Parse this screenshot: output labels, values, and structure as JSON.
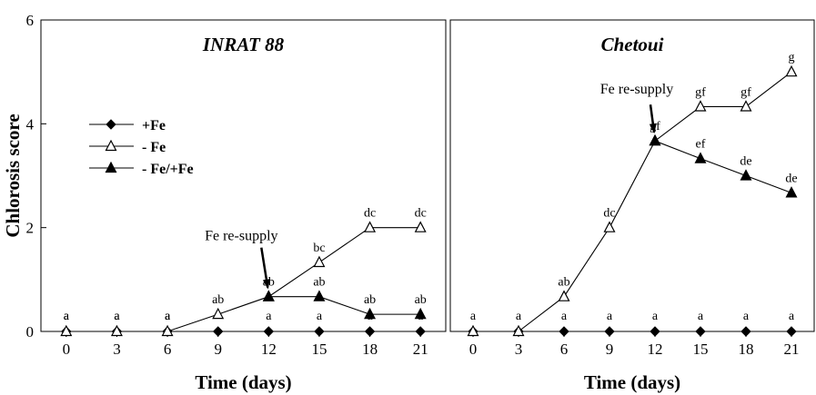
{
  "chart_data": [
    {
      "type": "line",
      "title": "INRAT 88",
      "xlabel": "Time (days)",
      "ylabel": "Chlorosis  score",
      "x": [
        0,
        3,
        6,
        9,
        12,
        15,
        18,
        21
      ],
      "xlim": [
        -1.5,
        22.5
      ],
      "ylim": [
        0,
        6
      ],
      "yticks": [
        0,
        2,
        4,
        6
      ],
      "grid": false,
      "legend_position": "left",
      "series": [
        {
          "name": "+Fe",
          "marker": "filled-diamond",
          "x": [
            0,
            3,
            6,
            9,
            12,
            15,
            18,
            21
          ],
          "y": [
            0,
            0,
            0,
            0,
            0,
            0,
            0,
            0
          ],
          "labels": [
            "a",
            "a",
            "a",
            "",
            "a",
            "a",
            "a",
            "a"
          ]
        },
        {
          "name": "- Fe",
          "marker": "open-triangle",
          "x": [
            0,
            3,
            6,
            9,
            12,
            15,
            18,
            21
          ],
          "y": [
            0,
            0,
            0,
            0.33,
            0.67,
            1.33,
            2.0,
            2.0
          ],
          "labels": [
            "a",
            "a",
            "a",
            "ab",
            "ab",
            "bc",
            "dc",
            "dc"
          ]
        },
        {
          "name": "- Fe/+Fe",
          "marker": "filled-triangle",
          "x": [
            12,
            15,
            18,
            21
          ],
          "y": [
            0.67,
            0.67,
            0.33,
            0.33
          ],
          "labels": [
            "",
            "ab",
            "ab",
            "ab"
          ]
        }
      ],
      "annotations": [
        {
          "text": "Fe re-supply",
          "x": 12,
          "arrow_to_y": 0.67
        }
      ]
    },
    {
      "type": "line",
      "title": "Chetoui",
      "xlabel": "Time (days)",
      "ylabel": "",
      "x": [
        0,
        3,
        6,
        9,
        12,
        15,
        18,
        21
      ],
      "xlim": [
        -1.5,
        22.5
      ],
      "ylim": [
        0,
        6
      ],
      "grid": false,
      "series": [
        {
          "name": "+Fe",
          "marker": "filled-diamond",
          "x": [
            0,
            3,
            6,
            9,
            12,
            15,
            18,
            21
          ],
          "y": [
            0,
            0,
            0,
            0,
            0,
            0,
            0,
            0
          ],
          "labels": [
            "a",
            "a",
            "a",
            "a",
            "a",
            "a",
            "a",
            "a"
          ]
        },
        {
          "name": "- Fe",
          "marker": "open-triangle",
          "x": [
            0,
            3,
            6,
            9,
            12,
            15,
            18,
            21
          ],
          "y": [
            0,
            0,
            0.67,
            2.0,
            3.67,
            4.33,
            4.33,
            5.0
          ],
          "labels": [
            "",
            "",
            "ab",
            "dc",
            "gf",
            "gf",
            "gf",
            "g"
          ]
        },
        {
          "name": "- Fe/+Fe",
          "marker": "filled-triangle",
          "x": [
            12,
            15,
            18,
            21
          ],
          "y": [
            3.67,
            3.33,
            3.0,
            2.67
          ],
          "labels": [
            "",
            "ef",
            "de",
            "de"
          ]
        }
      ],
      "annotations": [
        {
          "text": "Fe re-supply",
          "x": 12,
          "arrow_to_y": 3.67
        }
      ]
    }
  ]
}
